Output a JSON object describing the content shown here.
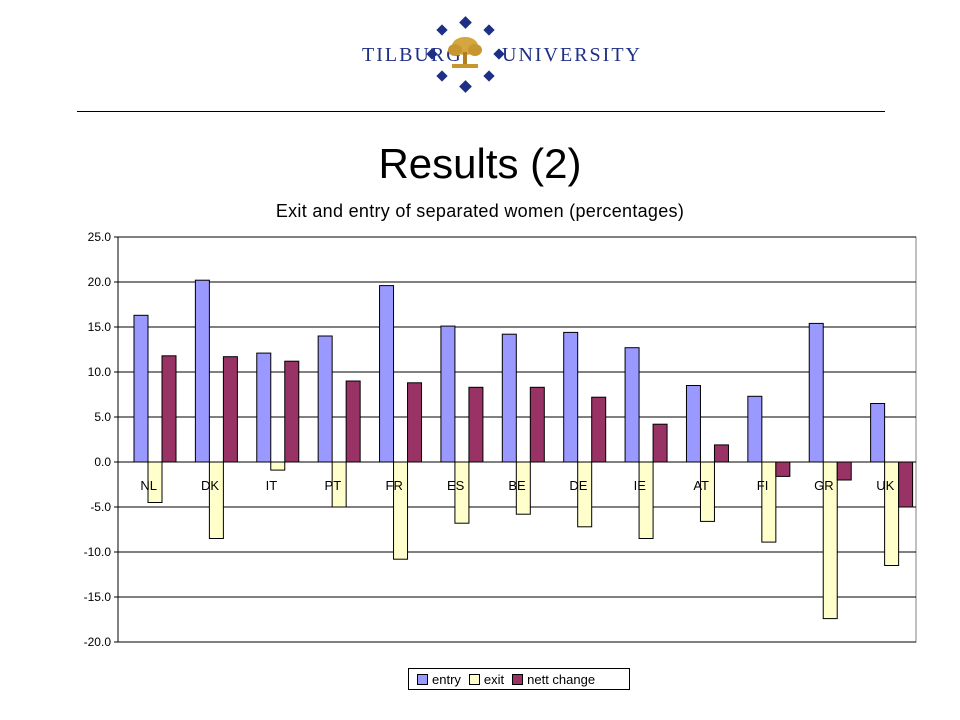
{
  "header": {
    "logo_left": "TILBURG",
    "logo_right": "UNIVERSITY",
    "logo_icon": "tilburg-tree-seal-icon",
    "title": "Results (2)"
  },
  "chart_data": {
    "type": "bar",
    "title": "Exit and entry of separated women (percentages)",
    "xlabel": "",
    "ylabel": "",
    "ylim": [
      -20,
      25
    ],
    "yticks": [
      "25.0",
      "20.0",
      "15.0",
      "10.0",
      "5.0",
      "0.0",
      "-5.0",
      "-10.0",
      "-15.0",
      "-20.0"
    ],
    "ytick_values": [
      25,
      20,
      15,
      10,
      5,
      0,
      -5,
      -10,
      -15,
      -20
    ],
    "grid": true,
    "legend_position": "bottom",
    "categories": [
      "NL",
      "DK",
      "IT",
      "PT",
      "FR",
      "ES",
      "BE",
      "DE",
      "IE",
      "AT",
      "FI",
      "GR",
      "UK"
    ],
    "series": [
      {
        "name": "entry",
        "color": "#9999ff",
        "values": [
          16.3,
          20.2,
          12.1,
          14.0,
          19.6,
          15.1,
          14.2,
          14.4,
          12.7,
          8.5,
          7.3,
          15.4,
          6.5
        ]
      },
      {
        "name": "exit",
        "color": "#ffffcc",
        "values": [
          -4.5,
          -8.5,
          -0.9,
          -5.0,
          -10.8,
          -6.8,
          -5.8,
          -7.2,
          -8.5,
          -6.6,
          -8.9,
          -17.4,
          -11.5
        ]
      },
      {
        "name": "nett change",
        "color": "#993366",
        "values": [
          11.8,
          11.7,
          11.2,
          9.0,
          8.8,
          8.3,
          8.3,
          7.2,
          4.2,
          1.9,
          -1.6,
          -2.0,
          -5.0
        ]
      }
    ]
  }
}
